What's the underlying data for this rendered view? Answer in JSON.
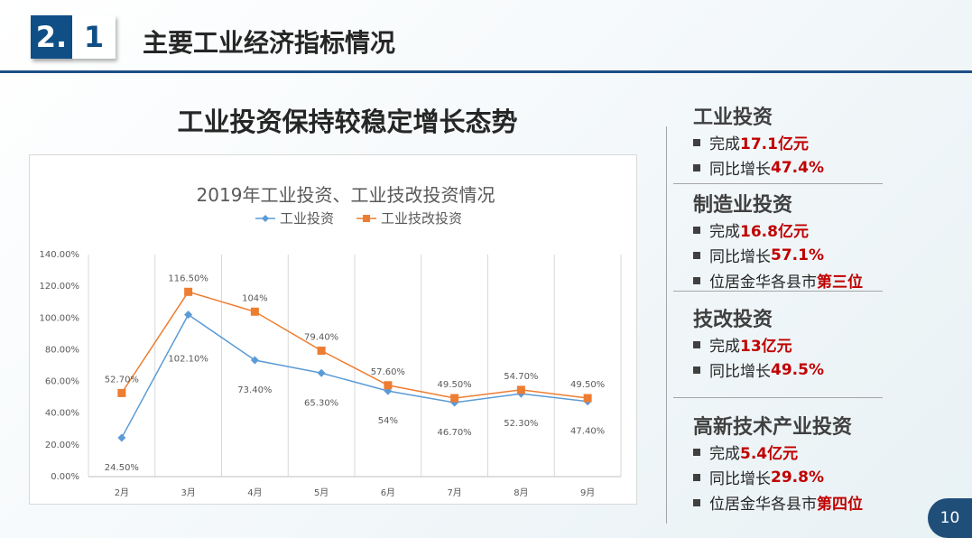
{
  "header": {
    "badge_left": "2.",
    "badge_right": "1",
    "title": "主要工业经济指标情况"
  },
  "main_title": "工业投资保持较稳定增长态势",
  "chart_data": {
    "type": "line",
    "title": "2019年工业投资、工业技改投资情况",
    "categories": [
      "2月",
      "3月",
      "4月",
      "5月",
      "6月",
      "7月",
      "8月",
      "9月"
    ],
    "series": [
      {
        "name": "工业投资",
        "values": [
          24.5,
          102.1,
          73.4,
          65.3,
          54,
          46.7,
          52.3,
          47.4
        ],
        "labels": [
          "24.50%",
          "102.10%",
          "73.40%",
          "65.30%",
          "54%",
          "46.70%",
          "52.30%",
          "47.40%"
        ],
        "color": "#5b9bd5",
        "marker": "diamond"
      },
      {
        "name": "工业技改投资",
        "values": [
          52.7,
          116.5,
          104,
          79.4,
          57.6,
          49.5,
          54.7,
          49.5
        ],
        "labels": [
          "52.70%",
          "116.50%",
          "104%",
          "79.40%",
          "57.60%",
          "49.50%",
          "54.70%",
          "49.50%"
        ],
        "color": "#ed7d31",
        "marker": "square"
      }
    ],
    "y_ticks": [
      "0.00%",
      "20.00%",
      "40.00%",
      "60.00%",
      "80.00%",
      "100.00%",
      "120.00%",
      "140.00%"
    ],
    "ylim": [
      0,
      140
    ],
    "legend_position": "top",
    "grid": "vertical"
  },
  "sidebar": {
    "sections": [
      {
        "title": "工业投资",
        "items": [
          {
            "prefix": "完成",
            "value": "17.1亿元"
          },
          {
            "prefix": "同比增长",
            "value": "47.4%"
          }
        ]
      },
      {
        "title": "制造业投资",
        "items": [
          {
            "prefix": "完成",
            "value": "16.8亿元"
          },
          {
            "prefix": "同比增长",
            "value": "57.1%"
          },
          {
            "prefix": "位居金华各县市",
            "value": "第三位"
          }
        ]
      },
      {
        "title": "技改投资",
        "items": [
          {
            "prefix": "完成",
            "value": "13亿元"
          },
          {
            "prefix": "同比增长",
            "value": "49.5%"
          }
        ]
      },
      {
        "title": "高新技术产业投资",
        "items": [
          {
            "prefix": "完成",
            "value": "5.4亿元"
          },
          {
            "prefix": "同比增长",
            "value": "29.8%"
          },
          {
            "prefix": "位居金华各县市",
            "value": "第四位"
          }
        ]
      }
    ]
  },
  "page_number": "10"
}
